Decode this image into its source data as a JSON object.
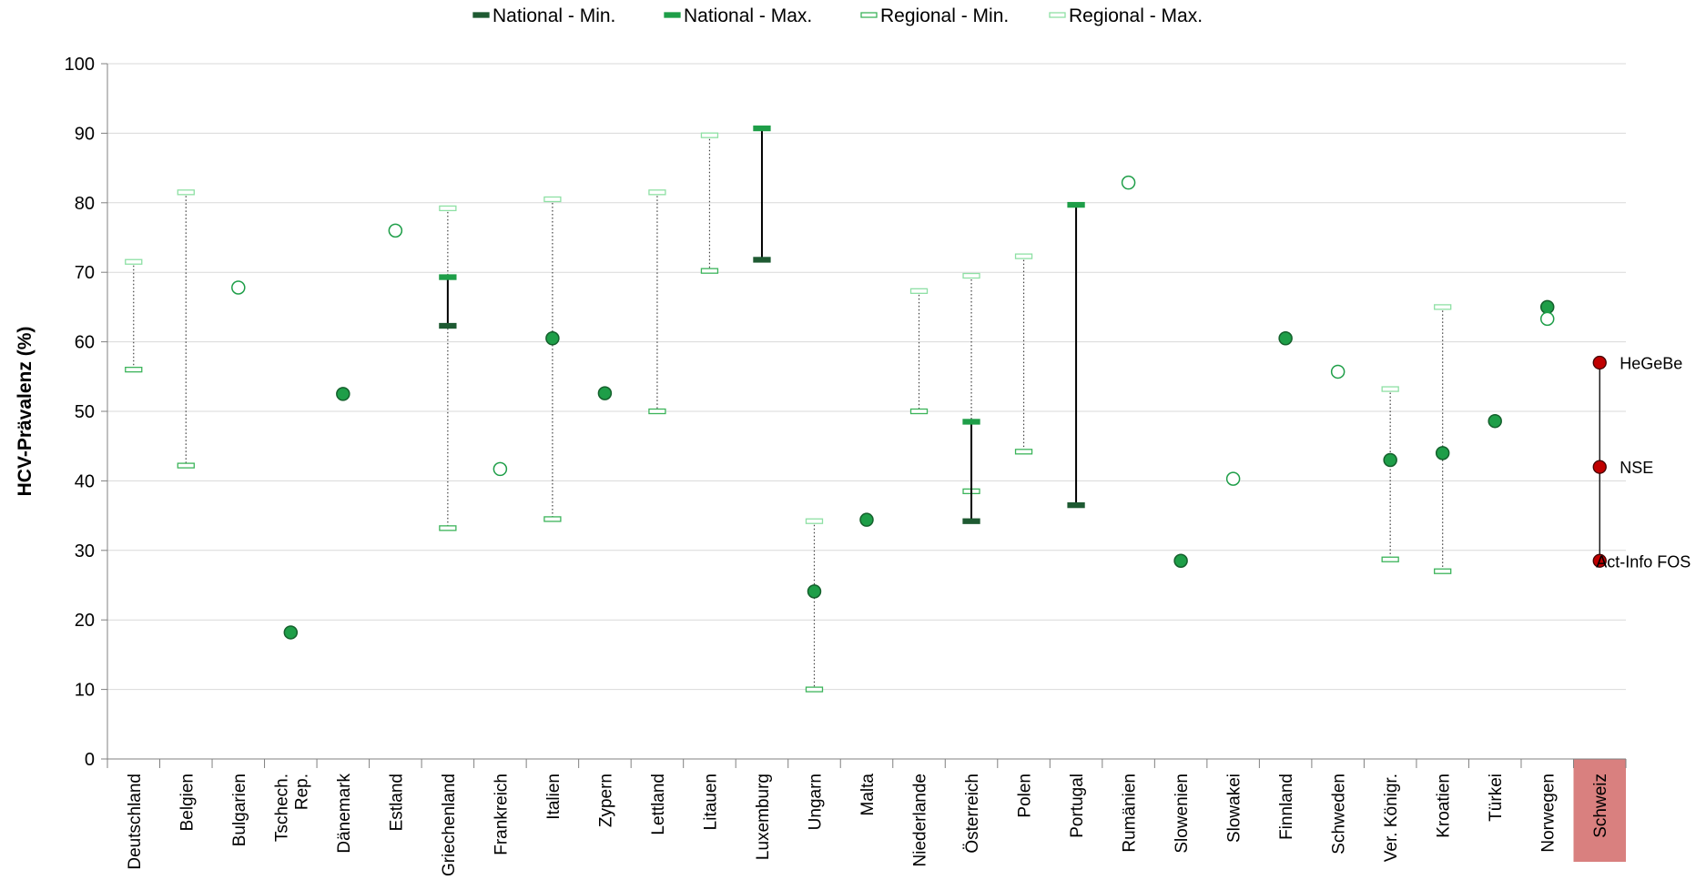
{
  "colors": {
    "national_min": "#1e5a32",
    "national_max": "#1e9e48",
    "regional": "#3cb45a",
    "regional_max": "#8ee0a4",
    "point_fill": "#1e9e48",
    "point_stroke": "#14602c",
    "open_point": "#1e9e48",
    "swiss_point": "#c00000",
    "swiss_bg": "#d9807f",
    "grid": "#d9d9d9",
    "axis": "#808080"
  },
  "chart_data": {
    "type": "range",
    "ylabel": "HCV-Prävalenz (%)",
    "ylim": [
      0,
      100
    ],
    "yticks": [
      "0",
      "10",
      "20",
      "30",
      "40",
      "50",
      "60",
      "70",
      "80",
      "90",
      "100"
    ],
    "grid": true,
    "legend_position": "top",
    "legend": [
      {
        "key": "national_min",
        "label": "National - Min."
      },
      {
        "key": "national_max",
        "label": "National - Max."
      },
      {
        "key": "regional_min",
        "label": "Regional - Min."
      },
      {
        "key": "regional_max",
        "label": "Regional - Max."
      }
    ],
    "categories": [
      {
        "label": "Deutschland",
        "regional": [
          56,
          71.5
        ]
      },
      {
        "label": "Belgien",
        "regional": [
          42.2,
          81.5
        ]
      },
      {
        "label": "Bulgarien",
        "open": 67.8
      },
      {
        "label": "Tschech. Rep.",
        "filled": 18.2
      },
      {
        "label": "Dänemark",
        "filled": 52.5
      },
      {
        "label": "Estland",
        "open": 76
      },
      {
        "label": "Griechenland",
        "regional": [
          33.2,
          79.2
        ],
        "national": [
          62.3,
          69.3
        ]
      },
      {
        "label": "Frankreich",
        "open": 41.7
      },
      {
        "label": "Italien",
        "regional": [
          34.5,
          80.5
        ],
        "filled": 60.5
      },
      {
        "label": "Zypern",
        "filled": 52.6
      },
      {
        "label": "Lettland",
        "regional": [
          50,
          81.5
        ]
      },
      {
        "label": "Litauen",
        "regional": [
          70.2,
          89.7
        ]
      },
      {
        "label": "Luxemburg",
        "national": [
          71.8,
          90.7
        ]
      },
      {
        "label": "Ungarn",
        "regional": [
          10,
          34.2
        ],
        "filled": 24.1
      },
      {
        "label": "Malta",
        "filled": 34.4
      },
      {
        "label": "Niederlande",
        "regional": [
          50,
          67.3
        ]
      },
      {
        "label": "Österreich",
        "regional": [
          38.5,
          69.5
        ],
        "national": [
          34.2,
          48.5
        ]
      },
      {
        "label": "Polen",
        "regional": [
          44.2,
          72.3
        ]
      },
      {
        "label": "Portugal",
        "national": [
          36.5,
          79.7
        ]
      },
      {
        "label": "Rumänien",
        "open": 82.9
      },
      {
        "label": "Slowenien",
        "filled": 28.5
      },
      {
        "label": "Slowakei",
        "open": 40.3
      },
      {
        "label": "Finnland",
        "filled": 60.5
      },
      {
        "label": "Schweden",
        "open": 55.7
      },
      {
        "label": "Ver. Königr.",
        "regional": [
          28.7,
          53.2
        ],
        "filled": 43
      },
      {
        "label": "Kroatien",
        "regional": [
          27,
          65
        ],
        "filled": 44
      },
      {
        "label": "Türkei",
        "filled": 48.6
      },
      {
        "label": "Norwegen",
        "filled": 65,
        "open": 63.3
      },
      {
        "label": "Schweiz",
        "highlight": true,
        "line": [
          28.5,
          57
        ],
        "swiss_points": [
          {
            "name": "HeGeBe",
            "value": 57
          },
          {
            "name": "NSE",
            "value": 42
          },
          {
            "name": "Act-Info FOS",
            "value": 28.5
          }
        ]
      }
    ]
  }
}
